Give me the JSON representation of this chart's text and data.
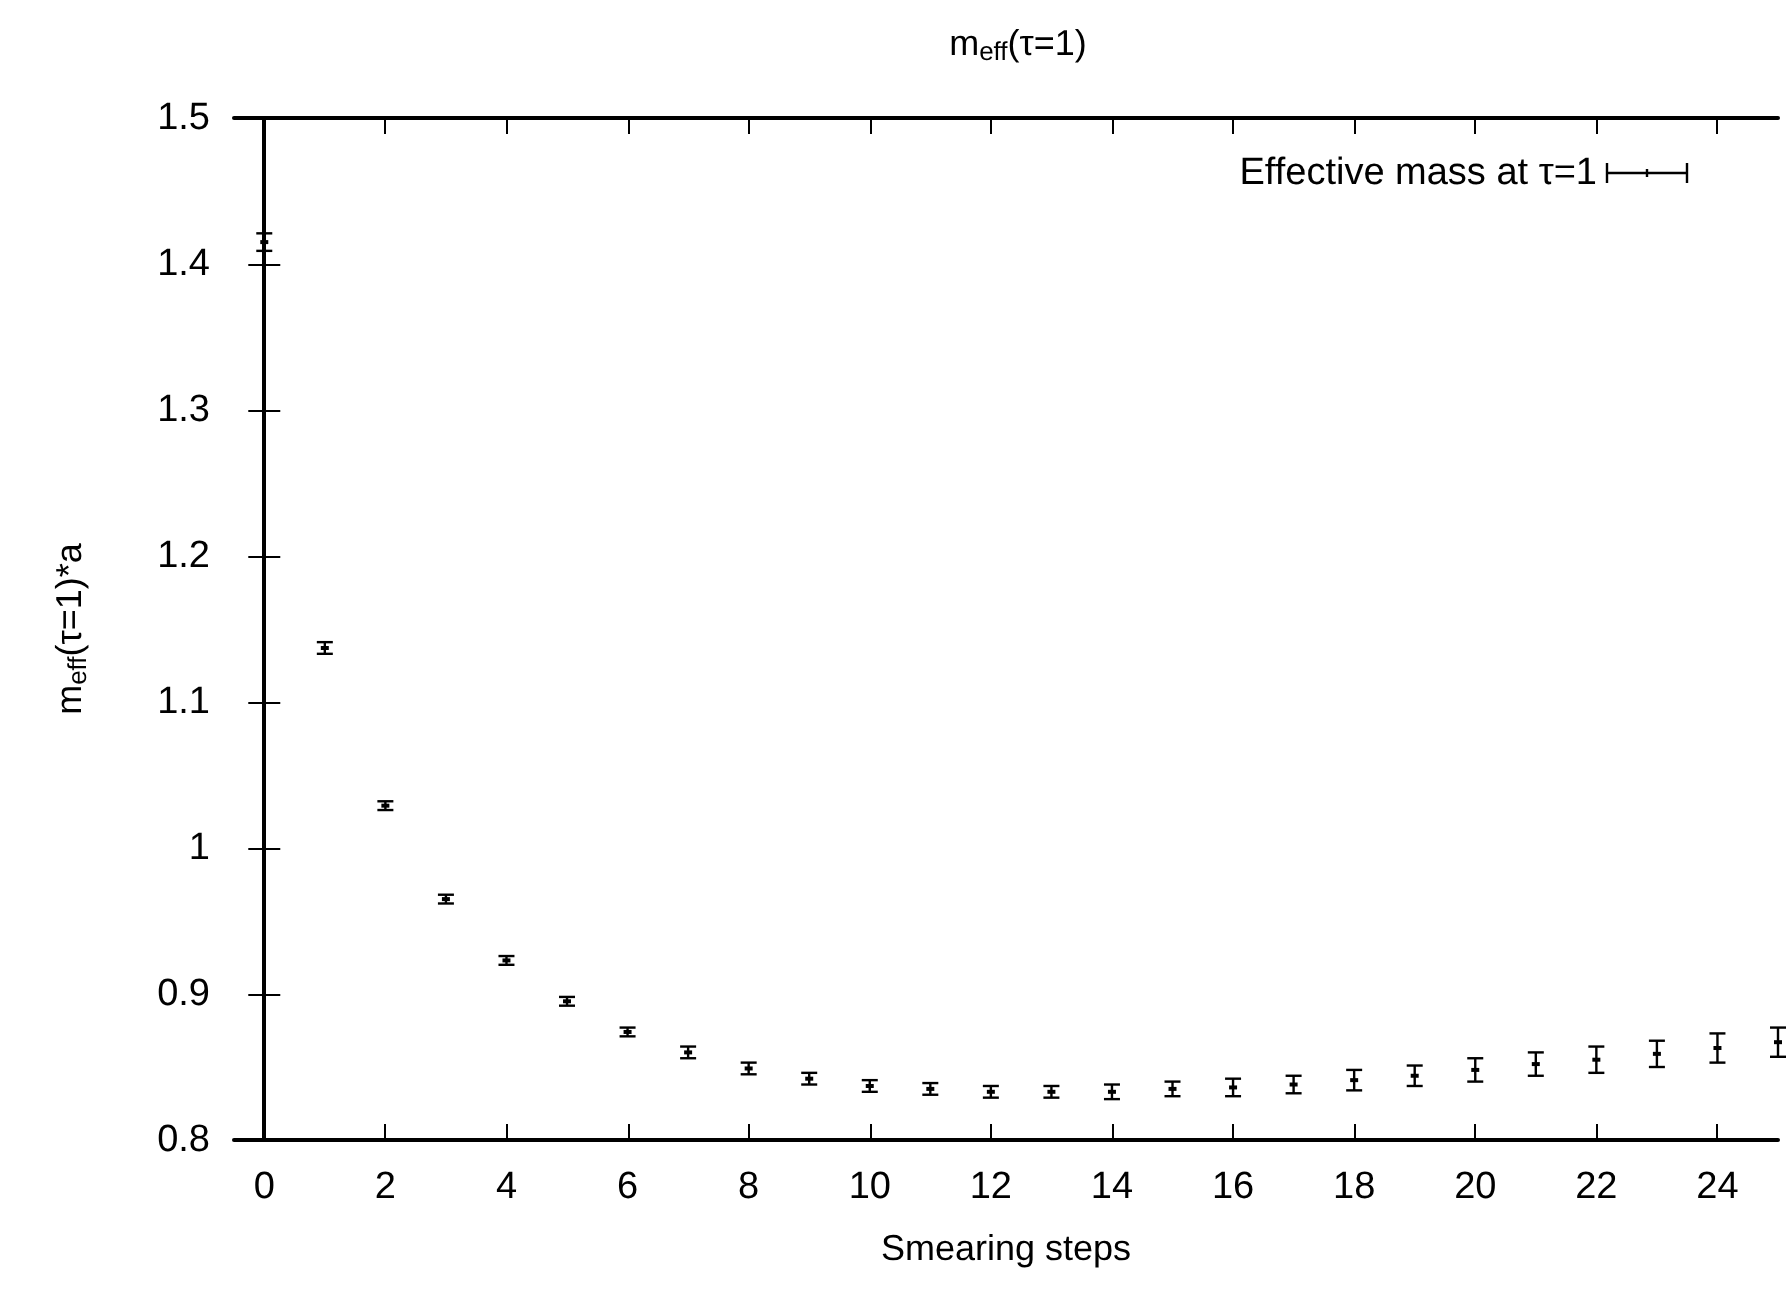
{
  "chart_data": {
    "type": "scatter",
    "title": "m$_{eff}$(τ=1)",
    "xlabel": "Smearing steps",
    "ylabel": "m$_{eff}$(τ=1)*a",
    "x": [
      0,
      1,
      2,
      3,
      4,
      5,
      6,
      7,
      8,
      9,
      10,
      11,
      12,
      13,
      14,
      15,
      16,
      17,
      18,
      19,
      20,
      21,
      22,
      23,
      24,
      25
    ],
    "series": [
      {
        "name": "Effective mass at τ=1",
        "color": "#000000",
        "values": [
          1.415,
          1.137,
          1.029,
          0.965,
          0.923,
          0.895,
          0.874,
          0.86,
          0.849,
          0.842,
          0.837,
          0.835,
          0.833,
          0.833,
          0.833,
          0.835,
          0.836,
          0.838,
          0.841,
          0.844,
          0.848,
          0.852,
          0.855,
          0.859,
          0.863,
          0.867
        ],
        "errors": [
          0.006,
          0.004,
          0.003,
          0.003,
          0.003,
          0.003,
          0.003,
          0.004,
          0.004,
          0.004,
          0.004,
          0.004,
          0.004,
          0.004,
          0.005,
          0.005,
          0.006,
          0.006,
          0.007,
          0.007,
          0.008,
          0.008,
          0.009,
          0.009,
          0.01,
          0.01
        ]
      }
    ],
    "xlim": [
      -0.5,
      25
    ],
    "xticks": [
      0,
      2,
      4,
      6,
      8,
      10,
      12,
      14,
      16,
      18,
      20,
      22,
      24
    ],
    "ylim": [
      0.8,
      1.5
    ],
    "yticks": [
      0.8,
      0.9,
      1,
      1.1,
      1.2,
      1.3,
      1.4,
      1.5
    ],
    "grid": false,
    "legend": "top right"
  }
}
